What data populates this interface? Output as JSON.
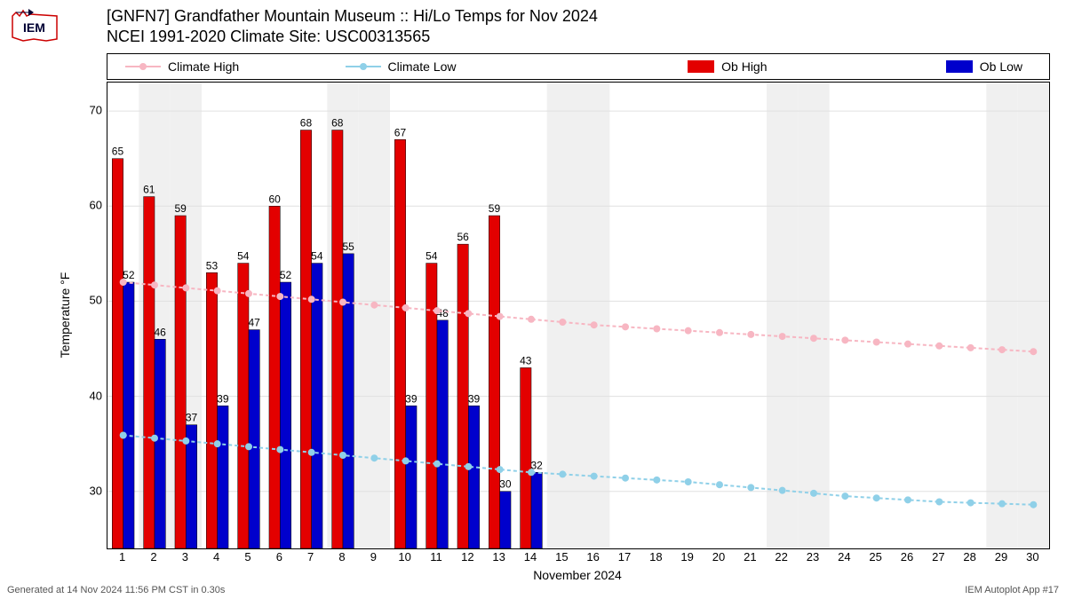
{
  "title_line1": "[GNFN7] Grandfather Mountain Museum :: Hi/Lo Temps for Nov 2024",
  "title_line2": "NCEI 1991-2020 Climate Site: USC00313565",
  "title_fontsize": 18,
  "ylabel": "Temperature °F",
  "xlabel": "November 2024",
  "footer_left": "Generated at 14 Nov 2024 11:56 PM CST in 0.30s",
  "footer_right": "IEM Autoplot App #17",
  "legend": {
    "climate_high": "Climate High",
    "climate_low": "Climate Low",
    "ob_high": "Ob High",
    "ob_low": "Ob Low"
  },
  "colors": {
    "climate_high": "#f7b6c2",
    "climate_low": "#8fd0e8",
    "ob_high": "#e30000",
    "ob_low": "#0000cc",
    "grid": "#e0e0e0",
    "band": "#f0f0f0",
    "background": "#ffffff",
    "text": "#000000"
  },
  "chart": {
    "type": "bar+line",
    "ylim": [
      24,
      73
    ],
    "yticks": [
      30,
      40,
      50,
      60,
      70
    ],
    "days": [
      1,
      2,
      3,
      4,
      5,
      6,
      7,
      8,
      9,
      10,
      11,
      12,
      13,
      14,
      15,
      16,
      17,
      18,
      19,
      20,
      21,
      22,
      23,
      24,
      25,
      26,
      27,
      28,
      29,
      30
    ],
    "shaded_days": [
      2,
      3,
      8,
      9,
      15,
      16,
      22,
      23,
      29,
      30
    ],
    "ob_high": [
      65,
      61,
      59,
      53,
      54,
      60,
      68,
      68,
      null,
      67,
      54,
      56,
      59,
      43,
      null,
      null,
      null,
      null,
      null,
      null,
      null,
      null,
      null,
      null,
      null,
      null,
      null,
      null,
      null,
      null
    ],
    "ob_low": [
      52,
      46,
      37,
      39,
      47,
      52,
      54,
      55,
      null,
      39,
      48,
      39,
      30,
      32,
      null,
      null,
      null,
      null,
      null,
      null,
      null,
      null,
      null,
      null,
      null,
      null,
      null,
      null,
      null,
      null
    ],
    "climate_high": [
      52.0,
      51.7,
      51.4,
      51.1,
      50.8,
      50.5,
      50.2,
      49.9,
      49.6,
      49.3,
      49.0,
      48.7,
      48.4,
      48.1,
      47.8,
      47.5,
      47.3,
      47.1,
      46.9,
      46.7,
      46.5,
      46.3,
      46.1,
      45.9,
      45.7,
      45.5,
      45.3,
      45.1,
      44.9,
      44.7
    ],
    "climate_low": [
      35.9,
      35.6,
      35.3,
      35.0,
      34.7,
      34.4,
      34.1,
      33.8,
      33.5,
      33.2,
      32.9,
      32.6,
      32.3,
      32.0,
      31.8,
      31.6,
      31.4,
      31.2,
      31.0,
      30.7,
      30.4,
      30.1,
      29.8,
      29.5,
      29.3,
      29.1,
      28.9,
      28.8,
      28.7,
      28.6
    ],
    "bar_width": 0.35,
    "line_width": 2,
    "marker_size": 4
  }
}
